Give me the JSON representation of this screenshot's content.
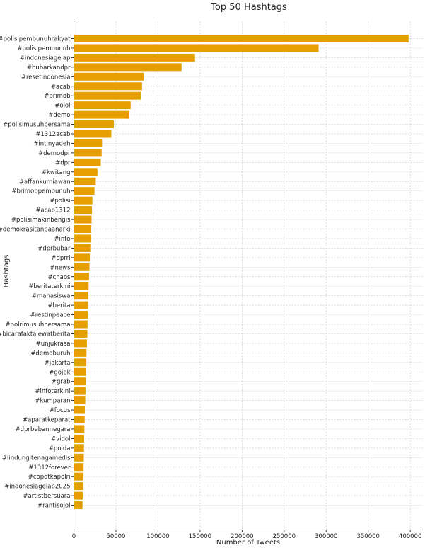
{
  "chart_data": {
    "type": "bar",
    "orientation": "horizontal",
    "title": "Top 50 Hashtags",
    "xlabel": "Number of Tweets",
    "ylabel": "Hashtags",
    "xlim": [
      0,
      415000
    ],
    "xticks": [
      0,
      50000,
      100000,
      150000,
      200000,
      250000,
      300000,
      350000,
      400000
    ],
    "grid": true,
    "bar_color": "#E59F00",
    "categories": [
      "#polisipembunuhrakyat",
      "#polisipembunuh",
      "#indonesiagelap",
      "#bubarkandpr",
      "#resetindonesia",
      "#acab",
      "#brimob",
      "#ojol",
      "#demo",
      "#polisimusuhbersama",
      "#1312acab",
      "#intinyadeh",
      "#demodpr",
      "#dpr",
      "#kwitang",
      "#affankurniawan",
      "#brimobpembunuh",
      "#polisi",
      "#acab1312",
      "#polisimakinbengis",
      "#demokrasitanpaanarki",
      "#info",
      "#dprbubar",
      "#dprri",
      "#news",
      "#chaos",
      "#beritaterkini",
      "#mahasiswa",
      "#berita",
      "#restinpeace",
      "#polrimusuhbersama",
      "#bicarafaktalewatberita",
      "#unjukrasa",
      "#demoburuh",
      "#jakarta",
      "#gojek",
      "#grab",
      "#infoterkini",
      "#kumparan",
      "#focus",
      "#aparatkeparat",
      "#dprbebannegara",
      "#vidol",
      "#polda",
      "#lindungitenagamedis",
      "#1312forever",
      "#copotkapolri",
      "#indonesiagelap2025",
      "#artistbersuara",
      "#rantisojol"
    ],
    "values": [
      398000,
      291000,
      144000,
      128000,
      83000,
      81000,
      79500,
      67500,
      66000,
      47500,
      44500,
      33500,
      33000,
      32000,
      28000,
      26000,
      24500,
      22000,
      21500,
      21000,
      20500,
      20000,
      19500,
      19000,
      18500,
      18000,
      17500,
      17000,
      16800,
      16500,
      16200,
      16000,
      15500,
      15000,
      14800,
      14500,
      14200,
      13800,
      13500,
      13000,
      12800,
      12500,
      12200,
      12000,
      11800,
      11500,
      11200,
      11000,
      10500,
      10200
    ]
  }
}
